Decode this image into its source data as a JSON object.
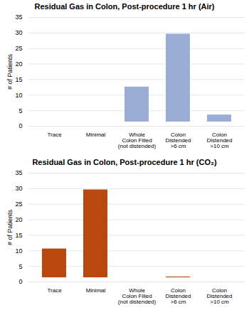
{
  "chart_data": [
    {
      "type": "bar",
      "title": "Residual Gas in Colon, Post-procedure 1 hr (Air)",
      "categories": [
        "Trace",
        "Minimal",
        "Whole\nColon Filled\n(not distended)",
        "Colon\nDistended\n>6 cm",
        "Colon\nDistended\n>10 cm"
      ],
      "values": [
        1,
        1,
        14,
        31,
        5
      ],
      "color": "#9badd4",
      "ylabel": "# of Patients",
      "ylim": [
        0,
        35
      ],
      "yticks": [
        0,
        5,
        10,
        15,
        20,
        25,
        30,
        35
      ],
      "grid": true
    },
    {
      "type": "bar",
      "title": "Residual Gas in Colon, Post-procedure 1 hr (CO₂)",
      "categories": [
        "Trace",
        "Minimal",
        "Whole\nColon Filled\n(not distended)",
        "Colon\nDistended\n>6 cm",
        "Colon\nDistended\n>10 cm"
      ],
      "values": [
        12,
        31,
        2,
        3,
        1
      ],
      "color": "#b8480e",
      "ylabel": "# of Patients",
      "ylim": [
        0,
        35
      ],
      "yticks": [
        0,
        5,
        10,
        15,
        20,
        25,
        30,
        35
      ],
      "grid": true
    }
  ]
}
